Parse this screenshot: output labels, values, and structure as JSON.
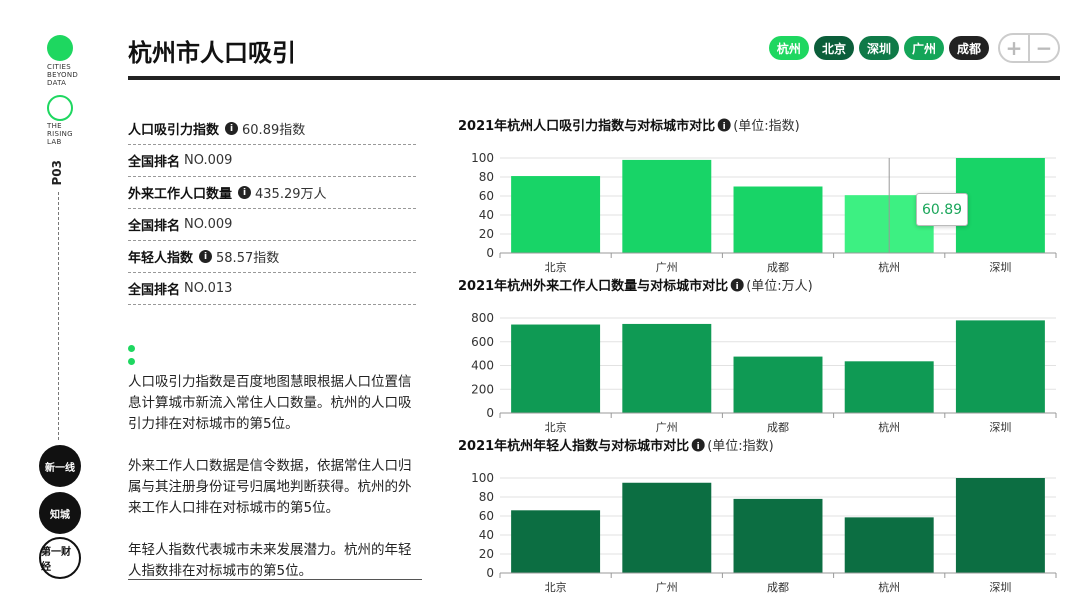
{
  "rail": {
    "logo_top": "CITIES\nBEYOND\nDATA",
    "logo_bottom": "THE\nRISING\nLAB",
    "vertical_label": "P03",
    "brand_1": "新一线",
    "brand_2": "知城",
    "brand_3": "第一财经"
  },
  "header": {
    "title": "杭州市人口吸引",
    "cities": [
      {
        "label": "杭州",
        "color": "#1ed760"
      },
      {
        "label": "北京",
        "color": "#0b5e3a"
      },
      {
        "label": "深圳",
        "color": "#0f7a48"
      },
      {
        "label": "广州",
        "color": "#14a558"
      },
      {
        "label": "成都",
        "color": "#222222"
      }
    ],
    "zoom_in": "+",
    "zoom_out": "−"
  },
  "stats": [
    {
      "label": "人口吸引力指数",
      "value": "60.89指数",
      "info": true
    },
    {
      "label": "全国排名",
      "value": "NO.009",
      "info": false
    },
    {
      "label": "外来工作人口数量",
      "value": "435.29万人",
      "info": true
    },
    {
      "label": "全国排名",
      "value": "NO.009",
      "info": false
    },
    {
      "label": "年轻人指数",
      "value": "58.57指数",
      "info": true
    },
    {
      "label": "全国排名",
      "value": "NO.013",
      "info": false
    }
  ],
  "description": [
    "人口吸引力指数是百度地图慧眼根据人口位置信息计算城市新流入常住人口数量。杭州的人口吸引力排在对标城市的第5位。",
    "外来工作人口数据是信令数据，依据常住人口归属与其注册身份证号归属地判断获得。杭州的外来工作人口排在对标城市的第5位。",
    "年轻人指数代表城市未来发展潜力。杭州的年轻人指数排在对标城市的第5位。"
  ],
  "tooltip": {
    "value": "60.89"
  },
  "chart_data": [
    {
      "type": "bar",
      "title": "2021年杭州人口吸引力指数与对标城市对比",
      "unit": "(单位:指数)",
      "categories": [
        "北京",
        "广州",
        "成都",
        "杭州",
        "深圳"
      ],
      "values": [
        81,
        98,
        70,
        60.89,
        100
      ],
      "ylim": [
        0,
        100
      ],
      "yticks": [
        0,
        20,
        40,
        60,
        80,
        100
      ],
      "colors": [
        "#18d467",
        "#18d467",
        "#18d467",
        "#3df082",
        "#18d467"
      ]
    },
    {
      "type": "bar",
      "title": "2021年杭州外来工作人口数量与对标城市对比",
      "unit": "(单位:万人)",
      "categories": [
        "北京",
        "广州",
        "成都",
        "杭州",
        "深圳"
      ],
      "values": [
        745,
        750,
        475,
        435.29,
        780
      ],
      "ylim": [
        0,
        800
      ],
      "yticks": [
        0,
        200,
        400,
        600,
        800
      ],
      "colors": [
        "#0f9a54",
        "#0f9a54",
        "#0f9a54",
        "#0f9a54",
        "#0f9a54"
      ]
    },
    {
      "type": "bar",
      "title": "2021年杭州年轻人指数与对标城市对比",
      "unit": "(单位:指数)",
      "categories": [
        "北京",
        "广州",
        "成都",
        "杭州",
        "深圳"
      ],
      "values": [
        66,
        95,
        78,
        58.57,
        100
      ],
      "ylim": [
        0,
        100
      ],
      "yticks": [
        0,
        20,
        40,
        60,
        80,
        100
      ],
      "colors": [
        "#0c6e42",
        "#0c6e42",
        "#0c6e42",
        "#0c6e42",
        "#0c6e42"
      ]
    }
  ]
}
